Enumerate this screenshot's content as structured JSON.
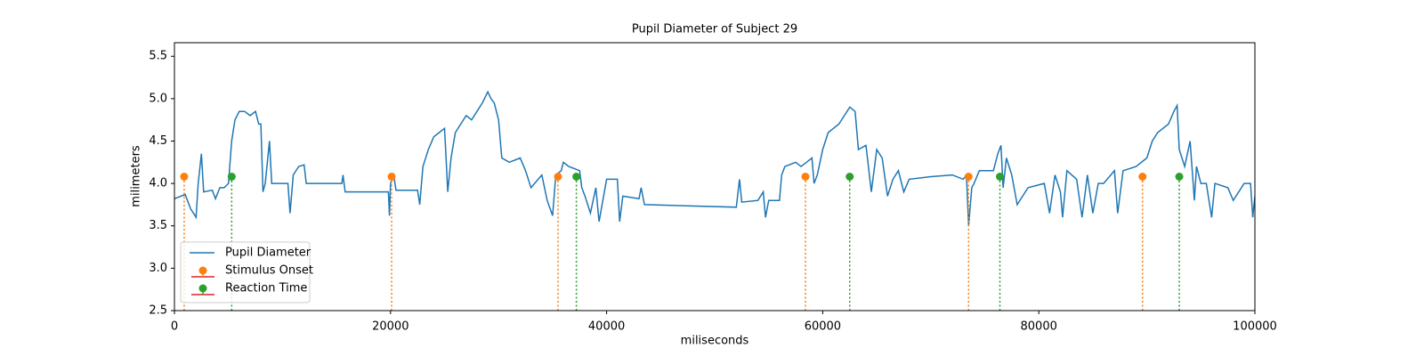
{
  "chart_data": {
    "type": "line",
    "title": "Pupil Diameter of Subject 29",
    "xlabel": "miliseconds",
    "ylabel": "milimeters",
    "xlim": [
      0,
      100000
    ],
    "ylim": [
      2.5,
      5.66
    ],
    "xticks": [
      0,
      20000,
      40000,
      60000,
      80000,
      100000
    ],
    "yticks": [
      2.5,
      {
        "value": 3.0,
        "label": "3.0"
      },
      3.5,
      {
        "value": 4.0,
        "label": "4.0"
      },
      4.5,
      {
        "value": 5.0,
        "label": "5.0"
      },
      5.5
    ],
    "legend": "lower left",
    "series": [
      {
        "name": "Pupil Diameter",
        "type": "line",
        "color": "#1f77b4",
        "x": [
          0,
          1000,
          1500,
          2000,
          2200,
          2500,
          2700,
          3500,
          3800,
          4200,
          4600,
          5000,
          5300,
          5600,
          6000,
          6500,
          7000,
          7500,
          7800,
          8000,
          8200,
          8400,
          8800,
          9000,
          10500,
          10700,
          11000,
          11500,
          12000,
          12200,
          15500,
          15600,
          15800,
          19800,
          19900,
          20000,
          20300,
          20500,
          22500,
          22700,
          23000,
          23500,
          24000,
          24500,
          25000,
          25300,
          25600,
          26000,
          26500,
          27000,
          27500,
          28000,
          28500,
          29000,
          29300,
          29600,
          30000,
          30300,
          31000,
          32000,
          32500,
          33000,
          34000,
          34500,
          35000,
          35300,
          35800,
          36000,
          36500,
          37500,
          37700,
          38000,
          38500,
          39000,
          39300,
          40000,
          41000,
          41200,
          41500,
          43000,
          43200,
          43500,
          52000,
          52300,
          52500,
          54000,
          54500,
          54700,
          55000,
          56000,
          56200,
          56500,
          57500,
          58000,
          58500,
          59000,
          59200,
          59500,
          60000,
          60500,
          61000,
          61500,
          62000,
          62500,
          63000,
          63300,
          64000,
          64500,
          65000,
          65500,
          66000,
          66500,
          67000,
          67500,
          68000,
          70000,
          72000,
          73000,
          73300,
          73500,
          73800,
          74000,
          74500,
          75800,
          76200,
          76500,
          76700,
          77000,
          77500,
          78000,
          79000,
          80500,
          81000,
          81500,
          82000,
          82200,
          82600,
          83500,
          84000,
          84500,
          85000,
          85500,
          86000,
          87000,
          87300,
          87800,
          89000,
          90000,
          90500,
          91000,
          91500,
          92000,
          92500,
          92800,
          93000,
          93500,
          94000,
          94400,
          94600,
          95000,
          95500,
          96000,
          96300,
          97500,
          98000,
          99000,
          99600,
          99800,
          100000
        ],
        "values": [
          3.82,
          3.87,
          3.7,
          3.6,
          4.0,
          4.35,
          3.9,
          3.92,
          3.82,
          3.95,
          3.95,
          4.0,
          4.5,
          4.75,
          4.85,
          4.85,
          4.8,
          4.85,
          4.7,
          4.7,
          3.9,
          4.0,
          4.5,
          4.0,
          4.0,
          3.65,
          4.1,
          4.2,
          4.22,
          4.0,
          4.0,
          4.1,
          3.9,
          3.9,
          3.62,
          4.0,
          4.1,
          3.92,
          3.92,
          3.75,
          4.2,
          4.4,
          4.55,
          4.6,
          4.65,
          3.9,
          4.3,
          4.6,
          4.7,
          4.8,
          4.75,
          4.85,
          4.95,
          5.08,
          5.0,
          4.95,
          4.75,
          4.3,
          4.25,
          4.3,
          4.15,
          3.95,
          4.1,
          3.8,
          3.62,
          4.1,
          4.15,
          4.25,
          4.2,
          4.15,
          3.95,
          3.85,
          3.65,
          3.95,
          3.55,
          4.05,
          4.05,
          3.55,
          3.85,
          3.82,
          3.95,
          3.75,
          3.72,
          4.05,
          3.78,
          3.8,
          3.9,
          3.6,
          3.8,
          3.8,
          4.1,
          4.2,
          4.25,
          4.2,
          4.25,
          4.3,
          4.0,
          4.1,
          4.4,
          4.6,
          4.65,
          4.7,
          4.8,
          4.9,
          4.85,
          4.4,
          4.45,
          3.9,
          4.4,
          4.3,
          3.85,
          4.05,
          4.15,
          3.9,
          4.05,
          4.08,
          4.1,
          4.05,
          4.1,
          3.5,
          3.95,
          4.0,
          4.15,
          4.15,
          4.35,
          4.45,
          3.95,
          4.3,
          4.1,
          3.75,
          3.95,
          4.0,
          3.65,
          4.1,
          3.9,
          3.6,
          4.15,
          4.05,
          3.6,
          4.1,
          3.65,
          4.0,
          4.0,
          4.15,
          3.65,
          4.15,
          4.2,
          4.3,
          4.5,
          4.6,
          4.65,
          4.7,
          4.85,
          4.92,
          4.4,
          4.2,
          4.5,
          3.8,
          4.2,
          4.0,
          4.0,
          3.6,
          4.0,
          3.95,
          3.8,
          4.0,
          4.0,
          3.6,
          3.85
        ]
      },
      {
        "name": "Stimulus Onset",
        "type": "stem",
        "color": "#ff7f0e",
        "baseline_color": "#d62728",
        "x": [
          900,
          20100,
          35500,
          58400,
          73500,
          89600
        ],
        "values": [
          4.08,
          4.08,
          4.08,
          4.08,
          4.08,
          4.08
        ]
      },
      {
        "name": "Reaction Time",
        "type": "stem",
        "color": "#2ca02c",
        "baseline_color": "#d62728",
        "x": [
          5300,
          37200,
          62500,
          76400,
          93000
        ],
        "values": [
          4.08,
          4.08,
          4.08,
          4.08,
          4.08
        ]
      }
    ]
  }
}
